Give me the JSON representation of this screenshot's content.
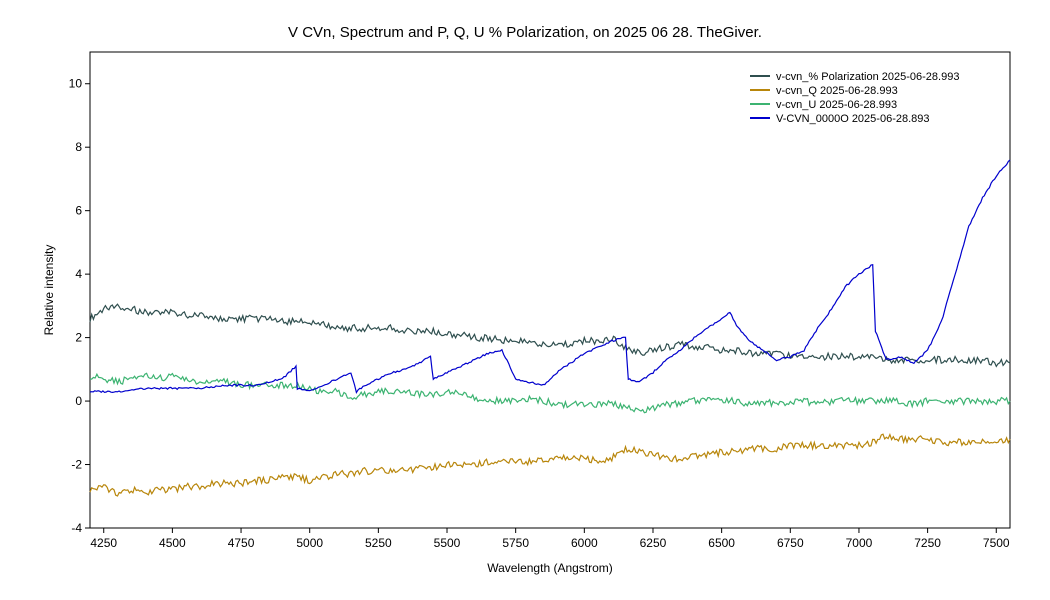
{
  "chart_data": {
    "type": "line",
    "title": "V CVn,  Spectrum and P, Q, U % Polarization, on 2025 06 28. TheGiver.",
    "xlabel": "Wavelength (Angstrom)",
    "ylabel": "Relative intensity",
    "xlim": [
      4200,
      7550
    ],
    "ylim": [
      -4,
      11
    ],
    "xticks": [
      4250,
      4500,
      4750,
      5000,
      5250,
      5500,
      5750,
      6000,
      6250,
      6500,
      6750,
      7000,
      7250,
      7500
    ],
    "yticks": [
      -4,
      -2,
      0,
      2,
      4,
      6,
      8,
      10
    ],
    "grid": false,
    "legend_position": "top-right",
    "series": [
      {
        "name": "v-cvn_% Polarization  2025-06-28.993",
        "color": "#2f4f4f",
        "x": [
          4200,
          4250,
          4300,
          4350,
          4400,
          4450,
          4500,
          4550,
          4600,
          4650,
          4700,
          4750,
          4800,
          4850,
          4900,
          4950,
          5000,
          5050,
          5100,
          5150,
          5200,
          5250,
          5300,
          5350,
          5400,
          5450,
          5500,
          5550,
          5600,
          5650,
          5700,
          5750,
          5800,
          5850,
          5900,
          5950,
          6000,
          6050,
          6100,
          6150,
          6200,
          6250,
          6300,
          6350,
          6400,
          6450,
          6500,
          6550,
          6600,
          6650,
          6700,
          6750,
          6800,
          6850,
          6900,
          6950,
          7000,
          7050,
          7100,
          7150,
          7200,
          7250,
          7300,
          7350,
          7400,
          7450,
          7500,
          7550
        ],
        "y": [
          2.6,
          2.9,
          3.0,
          2.9,
          2.8,
          2.8,
          2.8,
          2.7,
          2.7,
          2.6,
          2.6,
          2.6,
          2.6,
          2.6,
          2.5,
          2.5,
          2.5,
          2.4,
          2.3,
          2.3,
          2.3,
          2.3,
          2.3,
          2.2,
          2.2,
          2.2,
          2.1,
          2.1,
          2.0,
          2.0,
          1.9,
          1.9,
          1.9,
          1.8,
          1.8,
          1.8,
          1.9,
          1.9,
          2.0,
          1.7,
          1.5,
          1.6,
          1.7,
          1.8,
          1.7,
          1.7,
          1.6,
          1.6,
          1.5,
          1.5,
          1.5,
          1.4,
          1.4,
          1.4,
          1.4,
          1.4,
          1.4,
          1.4,
          1.3,
          1.3,
          1.3,
          1.3,
          1.3,
          1.3,
          1.3,
          1.3,
          1.2,
          1.2
        ]
      },
      {
        "name": "v-cvn_Q  2025-06-28.993",
        "color": "#b8860b",
        "x": [
          4200,
          4250,
          4300,
          4350,
          4400,
          4450,
          4500,
          4550,
          4600,
          4650,
          4700,
          4750,
          4800,
          4850,
          4900,
          4950,
          5000,
          5050,
          5100,
          5150,
          5200,
          5250,
          5300,
          5350,
          5400,
          5450,
          5500,
          5550,
          5600,
          5650,
          5700,
          5750,
          5800,
          5850,
          5900,
          5950,
          6000,
          6050,
          6100,
          6150,
          6200,
          6250,
          6300,
          6350,
          6400,
          6450,
          6500,
          6550,
          6600,
          6650,
          6700,
          6750,
          6800,
          6850,
          6900,
          6950,
          7000,
          7050,
          7100,
          7150,
          7200,
          7250,
          7300,
          7350,
          7400,
          7450,
          7500,
          7550
        ],
        "y": [
          -2.8,
          -2.7,
          -2.9,
          -2.8,
          -2.9,
          -2.8,
          -2.8,
          -2.7,
          -2.7,
          -2.6,
          -2.6,
          -2.6,
          -2.5,
          -2.5,
          -2.4,
          -2.4,
          -2.5,
          -2.4,
          -2.3,
          -2.3,
          -2.2,
          -2.2,
          -2.2,
          -2.2,
          -2.1,
          -2.1,
          -2.0,
          -2.0,
          -2.0,
          -1.9,
          -1.9,
          -1.9,
          -1.9,
          -1.9,
          -1.8,
          -1.8,
          -1.8,
          -1.9,
          -1.8,
          -1.5,
          -1.6,
          -1.7,
          -1.8,
          -1.8,
          -1.7,
          -1.7,
          -1.6,
          -1.6,
          -1.5,
          -1.5,
          -1.5,
          -1.4,
          -1.4,
          -1.4,
          -1.4,
          -1.4,
          -1.4,
          -1.3,
          -1.1,
          -1.2,
          -1.2,
          -1.2,
          -1.3,
          -1.3,
          -1.3,
          -1.3,
          -1.3,
          -1.2
        ]
      },
      {
        "name": "v-cvn_U  2025-06-28.993",
        "color": "#3cb371",
        "x": [
          4200,
          4250,
          4300,
          4350,
          4400,
          4450,
          4500,
          4550,
          4600,
          4650,
          4700,
          4750,
          4800,
          4850,
          4900,
          4950,
          5000,
          5050,
          5100,
          5150,
          5200,
          5250,
          5300,
          5350,
          5400,
          5450,
          5500,
          5550,
          5600,
          5650,
          5700,
          5750,
          5800,
          5850,
          5900,
          5950,
          6000,
          6050,
          6100,
          6150,
          6200,
          6250,
          6300,
          6350,
          6400,
          6450,
          6500,
          6550,
          6600,
          6650,
          6700,
          6750,
          6800,
          6850,
          6900,
          6950,
          7000,
          7050,
          7100,
          7150,
          7200,
          7250,
          7300,
          7350,
          7400,
          7450,
          7500,
          7550
        ],
        "y": [
          0.8,
          0.7,
          0.6,
          0.7,
          0.8,
          0.7,
          0.8,
          0.7,
          0.6,
          0.6,
          0.6,
          0.5,
          0.5,
          0.5,
          0.5,
          0.5,
          0.4,
          0.3,
          0.3,
          0.1,
          0.2,
          0.3,
          0.3,
          0.3,
          0.2,
          0.2,
          0.3,
          0.2,
          0.1,
          0.0,
          0.0,
          0.0,
          0.1,
          0.0,
          -0.1,
          -0.1,
          -0.1,
          -0.1,
          -0.1,
          -0.2,
          -0.3,
          -0.2,
          -0.1,
          -0.1,
          0.0,
          0.0,
          0.0,
          0.0,
          -0.1,
          0.0,
          -0.1,
          0.0,
          0.0,
          -0.1,
          0.0,
          0.0,
          0.0,
          0.0,
          0.0,
          0.0,
          -0.1,
          0.0,
          0.0,
          0.0,
          0.0,
          0.0,
          0.0,
          0.0
        ]
      },
      {
        "name": "V-CVN_0000O  2025-06-28.893",
        "color": "#0000cd",
        "x": [
          4200,
          4300,
          4400,
          4500,
          4600,
          4700,
          4800,
          4850,
          4900,
          4950,
          4955,
          5000,
          5050,
          5100,
          5150,
          5170,
          5200,
          5250,
          5300,
          5350,
          5400,
          5440,
          5450,
          5500,
          5550,
          5600,
          5650,
          5700,
          5750,
          5800,
          5850,
          5900,
          5950,
          6000,
          6050,
          6100,
          6150,
          6160,
          6200,
          6250,
          6300,
          6350,
          6400,
          6450,
          6500,
          6530,
          6560,
          6600,
          6650,
          6700,
          6750,
          6800,
          6850,
          6900,
          6950,
          7000,
          7050,
          7060,
          7100,
          7150,
          7200,
          7250,
          7300,
          7350,
          7400,
          7450,
          7500,
          7550
        ],
        "y": [
          0.3,
          0.3,
          0.4,
          0.4,
          0.4,
          0.5,
          0.5,
          0.6,
          0.7,
          1.1,
          0.4,
          0.3,
          0.5,
          0.7,
          0.9,
          0.3,
          0.5,
          0.7,
          0.9,
          1.0,
          1.2,
          1.4,
          0.7,
          0.9,
          1.1,
          1.3,
          1.5,
          1.6,
          0.7,
          0.6,
          0.5,
          0.9,
          1.2,
          1.5,
          1.7,
          1.9,
          2.0,
          0.7,
          0.6,
          0.9,
          1.3,
          1.6,
          2.0,
          2.3,
          2.6,
          2.8,
          2.3,
          1.9,
          1.6,
          1.3,
          1.4,
          1.6,
          2.3,
          2.9,
          3.6,
          4.0,
          4.3,
          2.2,
          1.3,
          1.4,
          1.2,
          1.6,
          2.5,
          4.0,
          5.5,
          6.4,
          7.1,
          7.6
        ]
      }
    ]
  }
}
